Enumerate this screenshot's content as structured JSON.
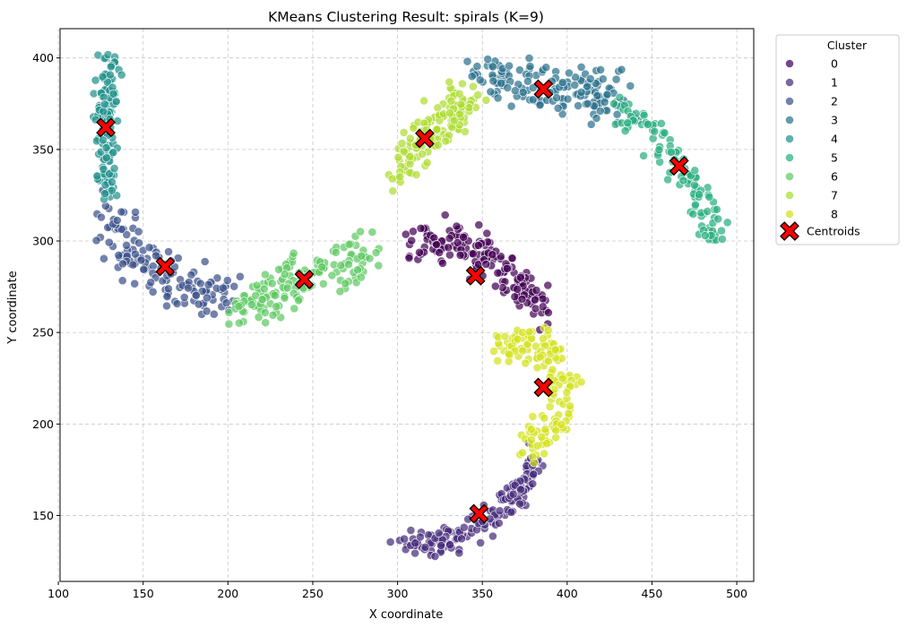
{
  "chart_data": {
    "type": "scatter",
    "title": "KMeans Clustering Result: spirals (K=9)",
    "xlabel": "X coordinate",
    "ylabel": "Y coordinate",
    "xlim": [
      101,
      510
    ],
    "ylim": [
      114,
      416
    ],
    "xticks": [
      100,
      150,
      200,
      250,
      300,
      350,
      400,
      450,
      500
    ],
    "yticks": [
      150,
      200,
      250,
      300,
      350,
      400
    ],
    "grid": true,
    "legend": {
      "title": "Cluster",
      "placement": "outside-right-top"
    },
    "series": [
      {
        "name": "0",
        "color": "#440154",
        "path": [
          [
            312,
            298
          ],
          [
            325,
            300
          ],
          [
            338,
            298
          ],
          [
            350,
            292
          ],
          [
            360,
            286
          ],
          [
            368,
            279
          ],
          [
            376,
            273
          ],
          [
            382,
            266
          ],
          [
            386,
            262
          ]
        ],
        "spread": 7,
        "count": 170
      },
      {
        "name": "1",
        "color": "#472d7b",
        "path": [
          [
            303,
            137
          ],
          [
            315,
            135
          ],
          [
            328,
            137
          ],
          [
            340,
            140
          ],
          [
            350,
            145
          ],
          [
            360,
            152
          ],
          [
            368,
            160
          ],
          [
            375,
            168
          ],
          [
            380,
            176
          ],
          [
            383,
            180
          ]
        ],
        "spread": 5,
        "count": 150
      },
      {
        "name": "2",
        "color": "#3b528b",
        "path": [
          [
            128,
            322
          ],
          [
            133,
            306
          ],
          [
            140,
            295
          ],
          [
            150,
            286
          ],
          [
            160,
            279
          ],
          [
            172,
            273
          ],
          [
            185,
            272
          ],
          [
            198,
            273
          ]
        ],
        "spread": 9,
        "count": 140
      },
      {
        "name": "3",
        "color": "#2c728e",
        "path": [
          [
            348,
            392
          ],
          [
            358,
            391
          ],
          [
            370,
            388
          ],
          [
            382,
            385
          ],
          [
            395,
            383
          ],
          [
            408,
            382
          ],
          [
            420,
            378
          ],
          [
            432,
            374
          ]
        ],
        "spread": 9,
        "count": 150
      },
      {
        "name": "4",
        "color": "#21918c",
        "path": [
          [
            130,
            398
          ],
          [
            129,
            385
          ],
          [
            128,
            372
          ],
          [
            128,
            360
          ],
          [
            128,
            347
          ],
          [
            129,
            335
          ],
          [
            130,
            325
          ]
        ],
        "spread": 5,
        "count": 120
      },
      {
        "name": "5",
        "color": "#28ae80",
        "path": [
          [
            432,
            374
          ],
          [
            443,
            365
          ],
          [
            452,
            356
          ],
          [
            461,
            347
          ],
          [
            470,
            336
          ],
          [
            477,
            325
          ],
          [
            483,
            313
          ],
          [
            487,
            302
          ]
        ],
        "spread": 6,
        "count": 110
      },
      {
        "name": "6",
        "color": "#5ec962",
        "path": [
          [
            205,
            265
          ],
          [
            220,
            268
          ],
          [
            235,
            275
          ],
          [
            250,
            281
          ],
          [
            263,
            286
          ],
          [
            276,
            291
          ],
          [
            285,
            296
          ]
        ],
        "spread": 8,
        "count": 150
      },
      {
        "name": "7",
        "color": "#addc30",
        "path": [
          [
            300,
            338
          ],
          [
            306,
            347
          ],
          [
            314,
            355
          ],
          [
            324,
            364
          ],
          [
            334,
            372
          ],
          [
            342,
            378
          ]
        ],
        "spread": 8,
        "count": 140
      },
      {
        "name": "8",
        "color": "#d2e21b",
        "path": [
          [
            360,
            243
          ],
          [
            372,
            245
          ],
          [
            383,
            242
          ],
          [
            392,
            236
          ],
          [
            396,
            226
          ],
          [
            395,
            214
          ],
          [
            392,
            202
          ],
          [
            386,
            192
          ],
          [
            380,
            186
          ]
        ],
        "spread": 7,
        "count": 150
      }
    ],
    "centroids": {
      "name": "Centroids",
      "color": "#ff0000",
      "points": [
        [
          346,
          281
        ],
        [
          348,
          151
        ],
        [
          163,
          286
        ],
        [
          386,
          383
        ],
        [
          128,
          362
        ],
        [
          466,
          341
        ],
        [
          245,
          279
        ],
        [
          316,
          356
        ],
        [
          386,
          220
        ]
      ]
    }
  }
}
